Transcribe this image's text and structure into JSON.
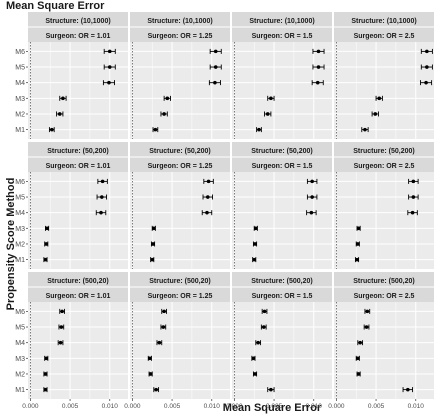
{
  "chart_data": {
    "type": "scatter",
    "title": "Mean Square Error",
    "xlabel": "Mean Square Error",
    "ylabel": "Propensity Score Method",
    "xlim": [
      -0.0003,
      0.0123
    ],
    "x_ticks": [
      "0.000",
      "0.005",
      "0.010"
    ],
    "x_tick_values": [
      0,
      0.005,
      0.01
    ],
    "methods": [
      "M1",
      "M2",
      "M3",
      "M4",
      "M5",
      "M6"
    ],
    "reference_line_x": 0,
    "grid": true,
    "panels": [
      {
        "structure": "Structure: (10,1000)",
        "surgeon": "Surgeon: OR = 1.01",
        "points": [
          {
            "method": "M1",
            "est": 0.0027,
            "lo": 0.0024,
            "hi": 0.003
          },
          {
            "method": "M2",
            "est": 0.0037,
            "lo": 0.0033,
            "hi": 0.0041
          },
          {
            "method": "M3",
            "est": 0.0041,
            "lo": 0.0037,
            "hi": 0.0045
          },
          {
            "method": "M4",
            "est": 0.0099,
            "lo": 0.0092,
            "hi": 0.0106
          },
          {
            "method": "M5",
            "est": 0.01,
            "lo": 0.0093,
            "hi": 0.0107
          },
          {
            "method": "M6",
            "est": 0.01,
            "lo": 0.0093,
            "hi": 0.0107
          }
        ]
      },
      {
        "structure": "Structure: (10,1000)",
        "surgeon": "Surgeon: OR = 1.25",
        "points": [
          {
            "method": "M1",
            "est": 0.0029,
            "lo": 0.0026,
            "hi": 0.0032
          },
          {
            "method": "M2",
            "est": 0.004,
            "lo": 0.0036,
            "hi": 0.0044
          },
          {
            "method": "M3",
            "est": 0.0044,
            "lo": 0.004,
            "hi": 0.0048
          },
          {
            "method": "M4",
            "est": 0.0104,
            "lo": 0.0097,
            "hi": 0.0111
          },
          {
            "method": "M5",
            "est": 0.0105,
            "lo": 0.0098,
            "hi": 0.0112
          },
          {
            "method": "M6",
            "est": 0.0105,
            "lo": 0.0098,
            "hi": 0.0112
          }
        ]
      },
      {
        "structure": "Structure: (10,1000)",
        "surgeon": "Surgeon: OR = 1.5",
        "points": [
          {
            "method": "M1",
            "est": 0.0031,
            "lo": 0.0028,
            "hi": 0.0034
          },
          {
            "method": "M2",
            "est": 0.0042,
            "lo": 0.0038,
            "hi": 0.0046
          },
          {
            "method": "M3",
            "est": 0.0046,
            "lo": 0.0042,
            "hi": 0.005
          },
          {
            "method": "M4",
            "est": 0.0105,
            "lo": 0.0098,
            "hi": 0.0112
          },
          {
            "method": "M5",
            "est": 0.0106,
            "lo": 0.0099,
            "hi": 0.0113
          },
          {
            "method": "M6",
            "est": 0.0106,
            "lo": 0.0099,
            "hi": 0.0113
          }
        ]
      },
      {
        "structure": "Structure: (10,1000)",
        "surgeon": "Surgeon: OR = 2.5",
        "points": [
          {
            "method": "M1",
            "est": 0.0036,
            "lo": 0.0032,
            "hi": 0.004
          },
          {
            "method": "M2",
            "est": 0.0049,
            "lo": 0.0045,
            "hi": 0.0053
          },
          {
            "method": "M3",
            "est": 0.0054,
            "lo": 0.005,
            "hi": 0.0058
          },
          {
            "method": "M4",
            "est": 0.0113,
            "lo": 0.0106,
            "hi": 0.012
          },
          {
            "method": "M5",
            "est": 0.0114,
            "lo": 0.0107,
            "hi": 0.0121
          },
          {
            "method": "M6",
            "est": 0.0114,
            "lo": 0.0107,
            "hi": 0.0121
          }
        ]
      },
      {
        "structure": "Structure: (50,200)",
        "surgeon": "Surgeon: OR = 1.01",
        "points": [
          {
            "method": "M1",
            "est": 0.0019,
            "lo": 0.0017,
            "hi": 0.0021
          },
          {
            "method": "M2",
            "est": 0.002,
            "lo": 0.0018,
            "hi": 0.0022
          },
          {
            "method": "M3",
            "est": 0.0021,
            "lo": 0.0019,
            "hi": 0.0023
          },
          {
            "method": "M4",
            "est": 0.0089,
            "lo": 0.0083,
            "hi": 0.0095
          },
          {
            "method": "M5",
            "est": 0.009,
            "lo": 0.0084,
            "hi": 0.0096
          },
          {
            "method": "M6",
            "est": 0.0091,
            "lo": 0.0085,
            "hi": 0.0097
          }
        ]
      },
      {
        "structure": "Structure: (50,200)",
        "surgeon": "Surgeon: OR = 1.25",
        "points": [
          {
            "method": "M1",
            "est": 0.0025,
            "lo": 0.0023,
            "hi": 0.0027
          },
          {
            "method": "M2",
            "est": 0.0026,
            "lo": 0.0024,
            "hi": 0.0028
          },
          {
            "method": "M3",
            "est": 0.0027,
            "lo": 0.0025,
            "hi": 0.0029
          },
          {
            "method": "M4",
            "est": 0.0094,
            "lo": 0.0088,
            "hi": 0.01
          },
          {
            "method": "M5",
            "est": 0.0095,
            "lo": 0.0089,
            "hi": 0.0101
          },
          {
            "method": "M6",
            "est": 0.0096,
            "lo": 0.009,
            "hi": 0.0102
          }
        ]
      },
      {
        "structure": "Structure: (50,200)",
        "surgeon": "Surgeon: OR = 1.5",
        "points": [
          {
            "method": "M1",
            "est": 0.0025,
            "lo": 0.0023,
            "hi": 0.0027
          },
          {
            "method": "M2",
            "est": 0.0026,
            "lo": 0.0024,
            "hi": 0.0028
          },
          {
            "method": "M3",
            "est": 0.0027,
            "lo": 0.0025,
            "hi": 0.0029
          },
          {
            "method": "M4",
            "est": 0.0097,
            "lo": 0.0091,
            "hi": 0.0103
          },
          {
            "method": "M5",
            "est": 0.0098,
            "lo": 0.0092,
            "hi": 0.0104
          },
          {
            "method": "M6",
            "est": 0.0098,
            "lo": 0.0092,
            "hi": 0.0104
          }
        ]
      },
      {
        "structure": "Structure: (50,200)",
        "surgeon": "Surgeon: OR = 2.5",
        "points": [
          {
            "method": "M1",
            "est": 0.0026,
            "lo": 0.0024,
            "hi": 0.0028
          },
          {
            "method": "M2",
            "est": 0.0027,
            "lo": 0.0025,
            "hi": 0.0029
          },
          {
            "method": "M3",
            "est": 0.0028,
            "lo": 0.0026,
            "hi": 0.003
          },
          {
            "method": "M4",
            "est": 0.0096,
            "lo": 0.009,
            "hi": 0.0102
          },
          {
            "method": "M5",
            "est": 0.0097,
            "lo": 0.0091,
            "hi": 0.0103
          },
          {
            "method": "M6",
            "est": 0.0097,
            "lo": 0.0091,
            "hi": 0.0103
          }
        ]
      },
      {
        "structure": "Structure: (500,20)",
        "surgeon": "Surgeon: OR = 1.01",
        "points": [
          {
            "method": "M1",
            "est": 0.0019,
            "lo": 0.0017,
            "hi": 0.0021
          },
          {
            "method": "M2",
            "est": 0.0019,
            "lo": 0.0017,
            "hi": 0.0021
          },
          {
            "method": "M3",
            "est": 0.002,
            "lo": 0.0018,
            "hi": 0.0022
          },
          {
            "method": "M4",
            "est": 0.0038,
            "lo": 0.0035,
            "hi": 0.0041
          },
          {
            "method": "M5",
            "est": 0.0039,
            "lo": 0.0036,
            "hi": 0.0042
          },
          {
            "method": "M6",
            "est": 0.004,
            "lo": 0.0037,
            "hi": 0.0043
          }
        ]
      },
      {
        "structure": "Structure: (500,20)",
        "surgeon": "Surgeon: OR = 1.25",
        "points": [
          {
            "method": "M1",
            "est": 0.003,
            "lo": 0.0027,
            "hi": 0.0033
          },
          {
            "method": "M2",
            "est": 0.0023,
            "lo": 0.0021,
            "hi": 0.0025
          },
          {
            "method": "M3",
            "est": 0.0022,
            "lo": 0.002,
            "hi": 0.0024
          },
          {
            "method": "M4",
            "est": 0.0034,
            "lo": 0.0031,
            "hi": 0.0037
          },
          {
            "method": "M5",
            "est": 0.0039,
            "lo": 0.0036,
            "hi": 0.0042
          },
          {
            "method": "M6",
            "est": 0.004,
            "lo": 0.0037,
            "hi": 0.0043
          }
        ]
      },
      {
        "structure": "Structure: (500,20)",
        "surgeon": "Surgeon: OR = 1.5",
        "points": [
          {
            "method": "M1",
            "est": 0.0046,
            "lo": 0.0042,
            "hi": 0.005
          },
          {
            "method": "M2",
            "est": 0.0026,
            "lo": 0.0024,
            "hi": 0.0028
          },
          {
            "method": "M3",
            "est": 0.0024,
            "lo": 0.0022,
            "hi": 0.0026
          },
          {
            "method": "M4",
            "est": 0.003,
            "lo": 0.0027,
            "hi": 0.0033
          },
          {
            "method": "M5",
            "est": 0.0037,
            "lo": 0.0034,
            "hi": 0.004
          },
          {
            "method": "M6",
            "est": 0.0038,
            "lo": 0.0035,
            "hi": 0.0041
          }
        ]
      },
      {
        "structure": "Structure: (500,20)",
        "surgeon": "Surgeon: OR = 2.5",
        "points": [
          {
            "method": "M1",
            "est": 0.009,
            "lo": 0.0084,
            "hi": 0.0096
          },
          {
            "method": "M2",
            "est": 0.0028,
            "lo": 0.0026,
            "hi": 0.003
          },
          {
            "method": "M3",
            "est": 0.0027,
            "lo": 0.0025,
            "hi": 0.0029
          },
          {
            "method": "M4",
            "est": 0.003,
            "lo": 0.0027,
            "hi": 0.0033
          },
          {
            "method": "M5",
            "est": 0.0038,
            "lo": 0.0035,
            "hi": 0.0041
          },
          {
            "method": "M6",
            "est": 0.0039,
            "lo": 0.0036,
            "hi": 0.0042
          }
        ]
      }
    ]
  },
  "colors": {
    "panel_bg": "#ebebeb",
    "strip_bg": "#d9d9d9",
    "grid": "#ffffff",
    "point": "#000000",
    "reference_line": "#555555",
    "text": "#1a1a1a",
    "axis_text": "#4d4d4d"
  }
}
